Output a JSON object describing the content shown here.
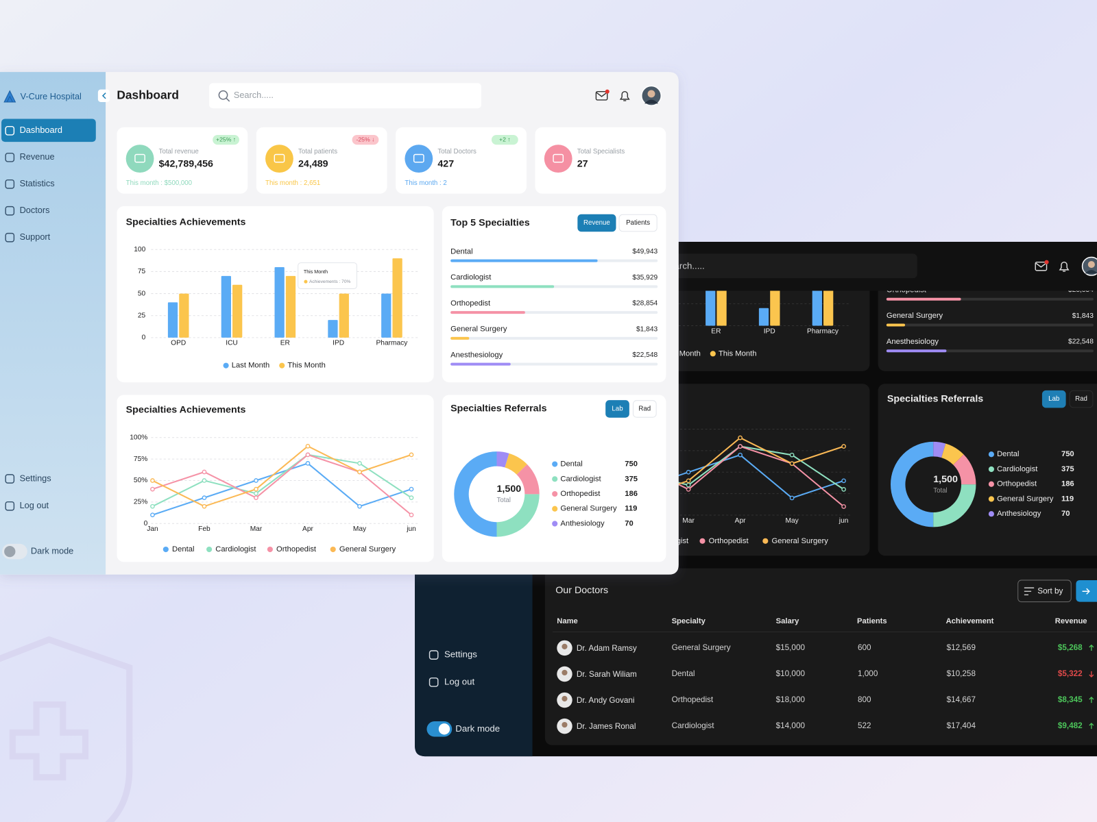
{
  "sidebar": {
    "brand": "V-Cure Hospital",
    "nav": [
      "Dashboard",
      "Revenue",
      "Statistics",
      "Doctors",
      "Support"
    ],
    "active": 0,
    "bottom": [
      "Settings",
      "Log out"
    ],
    "dark_mode": "Dark mode"
  },
  "header": {
    "title": "Dashboard",
    "search_placeholder": "Search....."
  },
  "stats": [
    {
      "label": "Total revenue",
      "value": "$42,789,456",
      "badge": "+25% ↑",
      "trend": "up",
      "note": "This month : $500,000",
      "color": "#8fd9bd"
    },
    {
      "label": "Total patients",
      "value": "24,489",
      "badge": "-25% ↓",
      "trend": "down",
      "note": "This month : 2,651",
      "color": "#f9c646"
    },
    {
      "label": "Total Doctors",
      "value": "427",
      "badge": "+2 ↑",
      "trend": "up",
      "note": "This month : 2",
      "color": "#5ba8f0"
    },
    {
      "label": "Total Specialists",
      "value": "27",
      "color": "#f590a3"
    }
  ],
  "chart_data": [
    {
      "type": "bar",
      "title": "Specialties Achievements",
      "categories": [
        "OPD",
        "ICU",
        "ER",
        "IPD",
        "Pharmacy"
      ],
      "series": [
        {
          "name": "Last Month",
          "color": "#5aabf5",
          "values": [
            40,
            70,
            80,
            20,
            50
          ]
        },
        {
          "name": "This Month",
          "color": "#fbc54e",
          "values": [
            50,
            60,
            70,
            50,
            90
          ]
        }
      ],
      "ylim": [
        0,
        100
      ],
      "yticks": [
        0,
        25,
        50,
        75,
        100
      ],
      "grid": true,
      "tooltip": {
        "title": "This Month",
        "text": "Achievements : 70%"
      }
    },
    {
      "type": "progress",
      "title": "Top 5 Specialties",
      "tabs": [
        "Revenue",
        "Patients"
      ],
      "active_tab": 0,
      "categories": [
        "Dental",
        "Cardiologist",
        "Orthopedist",
        "General Surgery",
        "Anesthesiology"
      ],
      "values": [
        49943,
        35929,
        28854,
        1843,
        22548
      ],
      "value_labels": [
        "$49,943",
        "$35,929",
        "$28,854",
        "$1,843",
        "$22,548"
      ],
      "progress": [
        71,
        50,
        36,
        9,
        29
      ],
      "xlim": [
        0,
        100
      ],
      "colors": [
        "#5aabf5",
        "#8ee0c0",
        "#f592a6",
        "#fbc54e",
        "#9f8cf5"
      ]
    },
    {
      "type": "line",
      "title": "Specialties Achievements",
      "categories": [
        "Jan",
        "Feb",
        "Mar",
        "Apr",
        "May",
        "jun"
      ],
      "series": [
        {
          "name": "Dental",
          "color": "#5aabf5",
          "values": [
            10,
            30,
            50,
            70,
            20,
            40
          ]
        },
        {
          "name": "Cardiologist",
          "color": "#8ee0c0",
          "values": [
            20,
            50,
            35,
            80,
            70,
            30
          ]
        },
        {
          "name": "Orthopedist",
          "color": "#f592a6",
          "values": [
            40,
            60,
            30,
            80,
            60,
            10
          ]
        },
        {
          "name": "General Surgery",
          "color": "#fbb955",
          "values": [
            50,
            20,
            40,
            90,
            60,
            80
          ]
        }
      ],
      "ylim": [
        0,
        100
      ],
      "yticks": [
        0,
        {
          "value": 25,
          "label": "25%"
        },
        {
          "value": 50,
          "label": "50%"
        },
        {
          "value": 75,
          "label": "75%"
        },
        {
          "value": 100,
          "label": "100%"
        }
      ],
      "grid": true
    },
    {
      "type": "donut",
      "title": "Specialties Referrals",
      "tabs": [
        "Lab",
        "Rad"
      ],
      "active_tab": 0,
      "total": 1500,
      "total_label": "1,500",
      "total_caption": "Total",
      "categories": [
        "Dental",
        "Cardiologist",
        "Orthopedist",
        "General Surgery",
        "Anthesiology"
      ],
      "values": [
        750,
        375,
        186,
        119,
        70
      ],
      "colors": [
        "#5aabf5",
        "#8ee0c0",
        "#f592a6",
        "#fbc54e",
        "#9f8cf5"
      ]
    }
  ],
  "doctors": {
    "title": "Our Doctors",
    "sort": "Sort by",
    "columns": [
      "Name",
      "Specialty",
      "Salary",
      "Patients",
      "Achievement",
      "Revenue"
    ],
    "rows": [
      {
        "name": "Dr. Adam Ramsy",
        "specialty": "General Surgery",
        "salary": "$15,000",
        "patients": "600",
        "achievement": "$12,569",
        "revenue": "$5,268",
        "trend": "up"
      },
      {
        "name": "Dr. Sarah Wiliam",
        "specialty": "Dental",
        "salary": "$10,000",
        "patients": "1,000",
        "achievement": "$10,258",
        "revenue": "$5,322",
        "trend": "down"
      },
      {
        "name": "Dr. Andy Govani",
        "specialty": "Orthopedist",
        "salary": "$18,000",
        "patients": "800",
        "achievement": "$14,667",
        "revenue": "$8,345",
        "trend": "up"
      },
      {
        "name": "Dr. James Ronal",
        "specialty": "Cardiologist",
        "salary": "$14,000",
        "patients": "522",
        "achievement": "$17,404",
        "revenue": "$9,482",
        "trend": "up"
      }
    ]
  }
}
